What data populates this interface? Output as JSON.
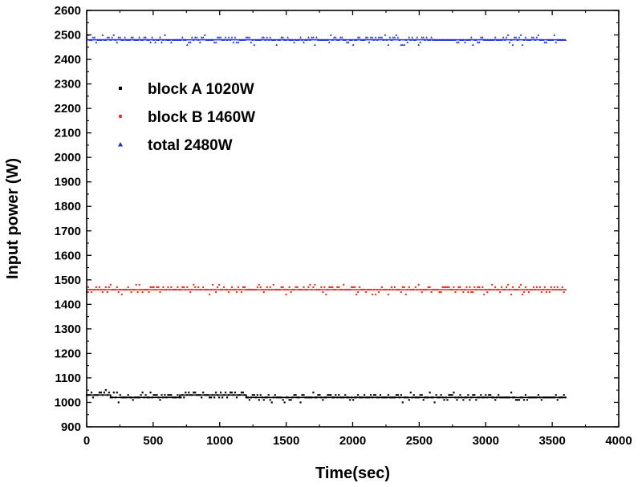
{
  "chart_data": {
    "type": "scatter",
    "title": "",
    "xlabel": "Time(sec)",
    "ylabel": "Input power (W)",
    "xlim": [
      0,
      4000
    ],
    "ylim": [
      900,
      2600
    ],
    "xticks": [
      0,
      500,
      1000,
      1500,
      2000,
      2500,
      3000,
      3500,
      4000
    ],
    "yticks": [
      900,
      1000,
      1100,
      1200,
      1300,
      1400,
      1500,
      1600,
      1700,
      1800,
      1900,
      2000,
      2100,
      2200,
      2300,
      2400,
      2500,
      2600
    ],
    "grid": false,
    "legend_position": "upper-left",
    "series": [
      {
        "name": "block A 1020W",
        "color": "#000000",
        "marker": "square",
        "mean": 1020,
        "x_range": [
          0,
          3600
        ],
        "segments": [
          {
            "x0": 0,
            "x1": 180,
            "y": 1030
          },
          {
            "x0": 180,
            "x1": 700,
            "y": 1020
          },
          {
            "x0": 700,
            "x1": 1200,
            "y": 1030
          },
          {
            "x0": 1200,
            "x1": 3600,
            "y": 1020
          }
        ]
      },
      {
        "name": "block B 1460W",
        "color": "#e8302a",
        "marker": "circle",
        "mean": 1460,
        "x_range": [
          0,
          3600
        ],
        "segments": [
          {
            "x0": 0,
            "x1": 3600,
            "y": 1460
          }
        ]
      },
      {
        "name": "total 2480W",
        "color": "#1f2fd6",
        "marker": "triangle",
        "mean": 2480,
        "x_range": [
          0,
          3600
        ],
        "segments": [
          {
            "x0": 0,
            "x1": 3600,
            "y": 2480
          }
        ]
      }
    ]
  }
}
